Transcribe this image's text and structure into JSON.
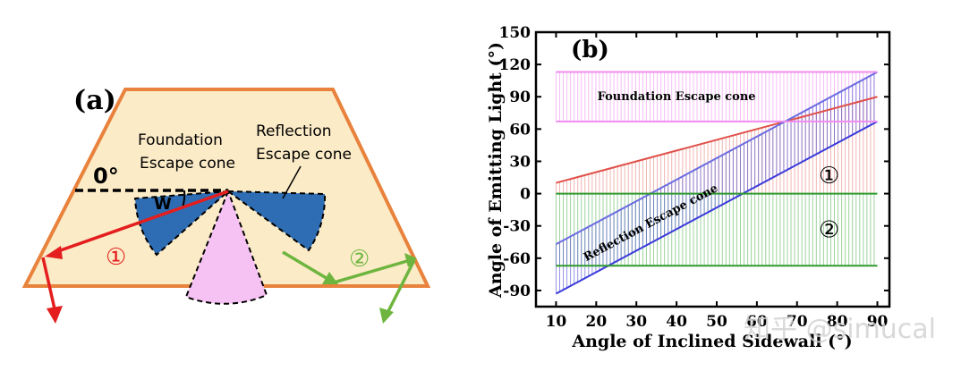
{
  "panel_a": {
    "label": "(a)",
    "angle_label": "0°",
    "w_label": "W",
    "foundation_label": [
      "Foundation",
      "Escape cone"
    ],
    "reflection_label": [
      "Reflection",
      "Escape cone"
    ],
    "ray1_marker": "①",
    "ray2_marker": "②",
    "colors": {
      "trapezoid_fill": "#FCEBC7",
      "trapezoid_stroke": "#E8823C",
      "cone_blue": "#2E6DB4",
      "cone_pink": "#F6C2F4",
      "ray_red": "#E41E1E",
      "ray_green": "#6EB53F"
    }
  },
  "chart_data": {
    "type": "line",
    "panel_label": "(b)",
    "xlabel": "Angle of Inclined Sidewall (°)",
    "ylabel": "Angle of Emitting Light (°)",
    "xlim": [
      5,
      93
    ],
    "ylim": [
      -105,
      150
    ],
    "xticks": [
      10,
      20,
      30,
      40,
      50,
      60,
      70,
      80,
      90
    ],
    "yticks": [
      -90,
      -60,
      -30,
      0,
      30,
      60,
      90,
      120,
      150
    ],
    "grid": false,
    "series": [
      {
        "key": "red_line",
        "x": [
          10,
          90
        ],
        "y": [
          10,
          90
        ],
        "color": "#E0504A"
      },
      {
        "key": "blue_upper",
        "x": [
          10,
          90
        ],
        "y": [
          -47,
          113
        ],
        "color": "#6A6CE0"
      },
      {
        "key": "blue_lower",
        "x": [
          10,
          90
        ],
        "y": [
          -93,
          67
        ],
        "color": "#3A3ADA"
      },
      {
        "key": "green_zero",
        "x": [
          10,
          90
        ],
        "y": [
          0,
          0
        ],
        "color": "#2E9A2E"
      },
      {
        "key": "green_lower",
        "x": [
          10,
          90
        ],
        "y": [
          -67,
          -67
        ],
        "color": "#2E9A2E"
      },
      {
        "key": "pink_upper",
        "x": [
          10,
          90
        ],
        "y": [
          113,
          113
        ],
        "color": "#F08CF0"
      },
      {
        "key": "pink_lower",
        "x": [
          10,
          90
        ],
        "y": [
          67,
          67
        ],
        "color": "#F08CF0"
      }
    ],
    "bands": [
      {
        "name": "Foundation Escape cone",
        "y_low": 67,
        "y_high": 113,
        "color": "#F4A8F4"
      }
    ],
    "region_labels": [
      {
        "text": "①",
        "x": 78,
        "y": 17
      },
      {
        "text": "②",
        "x": 78,
        "y": -33
      }
    ],
    "band_label": {
      "text": "Foundation Escape cone",
      "x": 40,
      "y": 90
    },
    "slanted_label": {
      "text": "Reflection Escape cone",
      "x": 34,
      "y": -30
    }
  },
  "watermark": "知乎 @simucal"
}
